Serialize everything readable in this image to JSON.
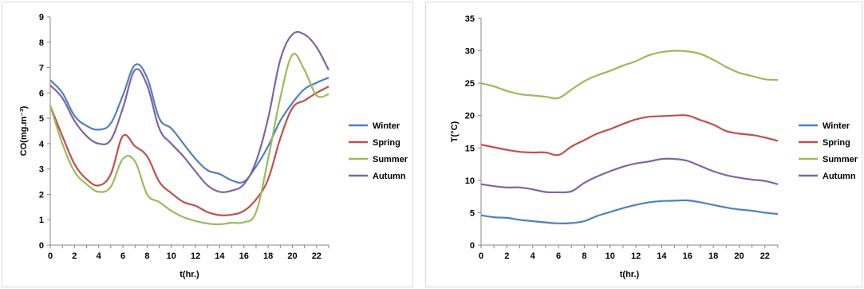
{
  "chart_data": [
    {
      "type": "line",
      "xlabel": "t(hr.)",
      "ylabel": "CO(mg.m⁻³)",
      "xlim": [
        0,
        23
      ],
      "ylim": [
        0,
        9
      ],
      "xticks": [
        0,
        2,
        4,
        6,
        8,
        10,
        12,
        14,
        16,
        18,
        20,
        22
      ],
      "yticks": [
        0,
        1,
        2,
        3,
        4,
        5,
        6,
        7,
        8,
        9
      ],
      "legend": "right",
      "grid": false,
      "series": [
        {
          "name": "Winter",
          "color": "#4f81bd",
          "x": [
            0,
            1,
            2,
            3,
            4,
            5,
            6,
            7,
            8,
            9,
            10,
            11,
            12,
            13,
            14,
            15,
            16,
            17,
            18,
            19,
            20,
            21,
            22,
            23
          ],
          "values": [
            6.5,
            6.0,
            5.1,
            4.7,
            4.55,
            4.8,
            5.9,
            7.1,
            6.6,
            5.0,
            4.6,
            4.0,
            3.4,
            2.95,
            2.8,
            2.55,
            2.5,
            3.1,
            3.9,
            4.9,
            5.6,
            6.15,
            6.4,
            6.6
          ]
        },
        {
          "name": "Spring",
          "color": "#c0504d",
          "x": [
            0,
            1,
            2,
            3,
            4,
            5,
            6,
            7,
            8,
            9,
            10,
            11,
            12,
            13,
            14,
            15,
            16,
            17,
            18,
            19,
            20,
            21,
            22,
            23
          ],
          "values": [
            5.5,
            4.3,
            3.2,
            2.6,
            2.35,
            2.8,
            4.3,
            3.9,
            3.5,
            2.5,
            2.05,
            1.7,
            1.55,
            1.3,
            1.18,
            1.2,
            1.35,
            1.8,
            2.6,
            4.2,
            5.4,
            5.7,
            6.0,
            6.25
          ]
        },
        {
          "name": "Summer",
          "color": "#9bbb59",
          "x": [
            0,
            1,
            2,
            3,
            4,
            5,
            6,
            7,
            8,
            9,
            10,
            11,
            12,
            13,
            14,
            15,
            16,
            17,
            18,
            19,
            20,
            21,
            22,
            23
          ],
          "values": [
            5.5,
            4.0,
            2.9,
            2.4,
            2.1,
            2.3,
            3.4,
            3.3,
            2.0,
            1.7,
            1.35,
            1.1,
            0.95,
            0.85,
            0.82,
            0.88,
            0.9,
            1.3,
            3.4,
            5.8,
            7.5,
            6.9,
            5.9,
            5.95
          ]
        },
        {
          "name": "Autumn",
          "color": "#8064a2",
          "x": [
            0,
            1,
            2,
            3,
            4,
            5,
            6,
            7,
            8,
            9,
            10,
            11,
            12,
            13,
            14,
            15,
            16,
            17,
            18,
            19,
            20,
            21,
            22,
            23
          ],
          "values": [
            6.3,
            5.8,
            4.9,
            4.3,
            4.0,
            4.15,
            5.4,
            6.9,
            6.3,
            4.6,
            4.0,
            3.5,
            2.9,
            2.35,
            2.1,
            2.15,
            2.4,
            3.3,
            5.0,
            7.3,
            8.3,
            8.3,
            7.8,
            6.9
          ]
        }
      ]
    },
    {
      "type": "line",
      "xlabel": "t(hr.)",
      "ylabel": "T(°C)",
      "xlim": [
        0,
        23
      ],
      "ylim": [
        0,
        35
      ],
      "xticks": [
        0,
        2,
        4,
        6,
        8,
        10,
        12,
        14,
        16,
        18,
        20,
        22
      ],
      "yticks": [
        0,
        5,
        10,
        15,
        20,
        25,
        30,
        35
      ],
      "legend": "right",
      "grid": false,
      "series": [
        {
          "name": "Winter",
          "color": "#4f81bd",
          "x": [
            0,
            1,
            2,
            3,
            4,
            5,
            6,
            7,
            8,
            9,
            10,
            11,
            12,
            13,
            14,
            15,
            16,
            17,
            18,
            19,
            20,
            21,
            22,
            23
          ],
          "values": [
            4.6,
            4.3,
            4.2,
            3.9,
            3.7,
            3.5,
            3.35,
            3.4,
            3.7,
            4.5,
            5.1,
            5.7,
            6.2,
            6.6,
            6.8,
            6.85,
            6.9,
            6.6,
            6.2,
            5.8,
            5.5,
            5.3,
            5.0,
            4.8
          ]
        },
        {
          "name": "Spring",
          "color": "#c0504d",
          "x": [
            0,
            1,
            2,
            3,
            4,
            5,
            6,
            7,
            8,
            9,
            10,
            11,
            12,
            13,
            14,
            15,
            16,
            17,
            18,
            19,
            20,
            21,
            22,
            23
          ],
          "values": [
            15.5,
            15.1,
            14.7,
            14.4,
            14.3,
            14.3,
            13.9,
            15.2,
            16.2,
            17.2,
            17.9,
            18.7,
            19.4,
            19.8,
            19.9,
            20.0,
            20.0,
            19.3,
            18.6,
            17.6,
            17.2,
            17.0,
            16.6,
            16.1
          ]
        },
        {
          "name": "Summer",
          "color": "#9bbb59",
          "x": [
            0,
            1,
            2,
            3,
            4,
            5,
            6,
            7,
            8,
            9,
            10,
            11,
            12,
            13,
            14,
            15,
            16,
            17,
            18,
            19,
            20,
            21,
            22,
            23
          ],
          "values": [
            25.0,
            24.5,
            23.8,
            23.3,
            23.1,
            22.9,
            22.7,
            24.0,
            25.3,
            26.2,
            26.9,
            27.7,
            28.4,
            29.3,
            29.8,
            30.0,
            29.9,
            29.5,
            28.6,
            27.5,
            26.6,
            26.1,
            25.6,
            25.5
          ]
        },
        {
          "name": "Autumn",
          "color": "#8064a2",
          "x": [
            0,
            1,
            2,
            3,
            4,
            5,
            6,
            7,
            8,
            9,
            10,
            11,
            12,
            13,
            14,
            15,
            16,
            17,
            18,
            19,
            20,
            21,
            22,
            23
          ],
          "values": [
            9.4,
            9.1,
            8.9,
            8.9,
            8.6,
            8.2,
            8.15,
            8.3,
            9.6,
            10.6,
            11.4,
            12.1,
            12.6,
            12.9,
            13.3,
            13.3,
            13.0,
            12.2,
            11.4,
            10.8,
            10.4,
            10.1,
            9.9,
            9.4
          ]
        }
      ]
    }
  ]
}
